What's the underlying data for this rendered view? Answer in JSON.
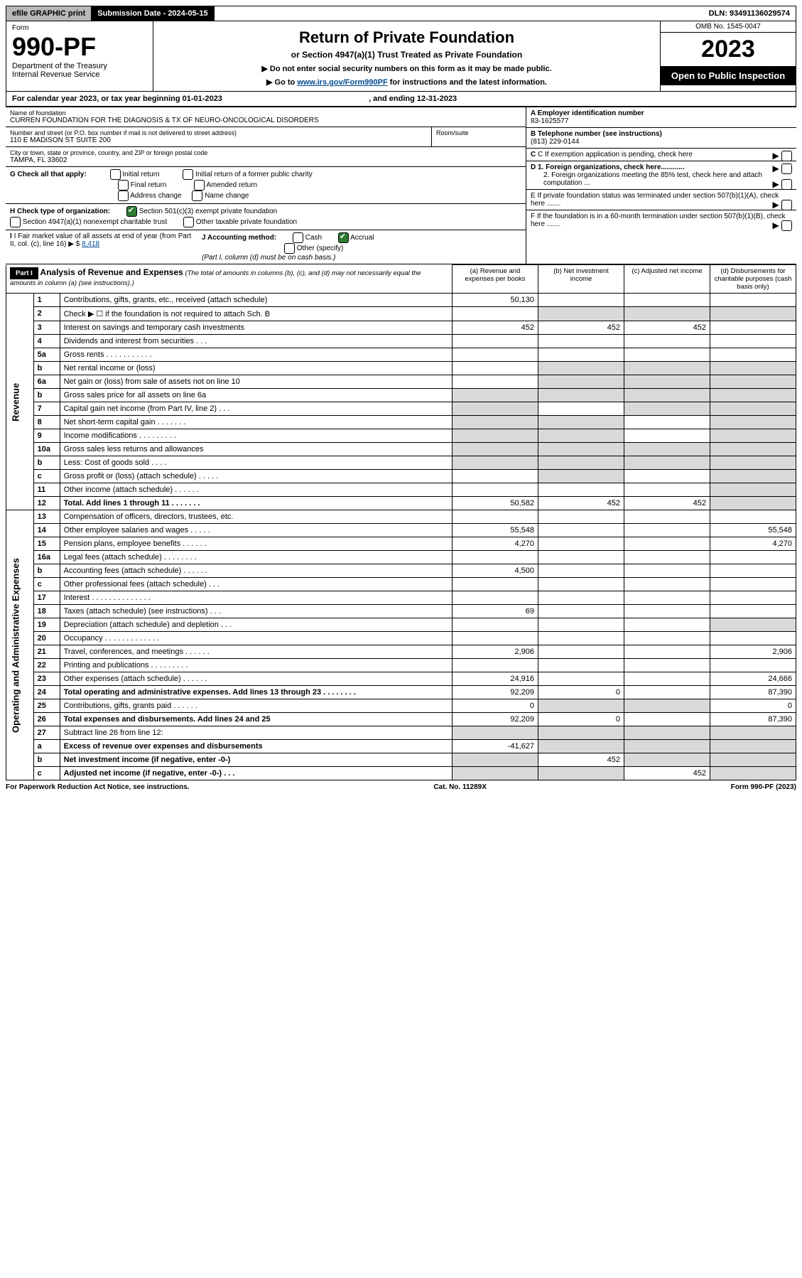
{
  "topbar": {
    "efile": "efile GRAPHIC print",
    "sublabel": "Submission Date - 2024-05-15",
    "dln": "DLN: 93491136029574"
  },
  "header": {
    "formWord": "Form",
    "formNo": "990-PF",
    "dept": "Department of the Treasury",
    "irs": "Internal Revenue Service",
    "title": "Return of Private Foundation",
    "subtitle": "or Section 4947(a)(1) Trust Treated as Private Foundation",
    "note1": "▶ Do not enter social security numbers on this form as it may be made public.",
    "note2_pre": "▶ Go to ",
    "note2_link": "www.irs.gov/Form990PF",
    "note2_post": " for instructions and the latest information.",
    "omb": "OMB No. 1545-0047",
    "year": "2023",
    "open": "Open to Public Inspection"
  },
  "calendar": {
    "pre": "For calendar year 2023, or tax year beginning ",
    "begin": "01-01-2023",
    "mid": ", and ending ",
    "end": "12-31-2023"
  },
  "foundation": {
    "nameLabel": "Name of foundation",
    "name": "CURREN FOUNDATION FOR THE DIAGNOSIS & TX OF NEURO-ONCOLOGICAL DISORDERS",
    "addrLabel": "Number and street (or P.O. box number if mail is not delivered to street address)",
    "addr": "110 E MADISON ST SUITE 200",
    "roomLabel": "Room/suite",
    "cityLabel": "City or town, state or province, country, and ZIP or foreign postal code",
    "city": "TAMPA, FL  33602",
    "einLabel": "A Employer identification number",
    "ein": "83-1625577",
    "phoneLabel": "B Telephone number (see instructions)",
    "phone": "(813) 229-0144",
    "cLabel": "C If exemption application is pending, check here",
    "d1": "D 1. Foreign organizations, check here............",
    "d2": "2. Foreign organizations meeting the 85% test, check here and attach computation ...",
    "e": "E  If private foundation status was terminated under section 507(b)(1)(A), check here .......",
    "f": "F  If the foundation is in a 60-month termination under section 507(b)(1)(B), check here .......",
    "gLabel": "G Check all that apply:",
    "g_items": [
      "Initial return",
      "Final return",
      "Address change",
      "Initial return of a former public charity",
      "Amended return",
      "Name change"
    ],
    "hLabel": "H Check type of organization:",
    "h1": "Section 501(c)(3) exempt private foundation",
    "h2": "Section 4947(a)(1) nonexempt charitable trust",
    "h3": "Other taxable private foundation",
    "iLabel": "I Fair market value of all assets at end of year (from Part II, col. (c), line 16)",
    "iVal": "8,418",
    "jLabel": "J Accounting method:",
    "j_cash": "Cash",
    "j_accrual": "Accrual",
    "j_other": "Other (specify)",
    "j_note": "(Part I, column (d) must be on cash basis.)"
  },
  "part1": {
    "label": "Part I",
    "title": "Analysis of Revenue and Expenses",
    "note": "(The total of amounts in columns (b), (c), and (d) may not necessarily equal the amounts in column (a) (see instructions).)",
    "cols": {
      "a": "(a) Revenue and expenses per books",
      "b": "(b) Net investment income",
      "c": "(c) Adjusted net income",
      "d": "(d) Disbursements for charitable purposes (cash basis only)"
    }
  },
  "sections": {
    "revenue": "Revenue",
    "expenses": "Operating and Administrative Expenses"
  },
  "rows": [
    {
      "n": "1",
      "d": "Contributions, gifts, grants, etc., received (attach schedule)",
      "a": "50,130",
      "b": "",
      "c": "",
      "dd": ""
    },
    {
      "n": "2",
      "d": "Check ▶ ☐ if the foundation is not required to attach Sch. B",
      "grey_bcd": true
    },
    {
      "n": "3",
      "d": "Interest on savings and temporary cash investments",
      "a": "452",
      "b": "452",
      "c": "452",
      "dd": ""
    },
    {
      "n": "4",
      "d": "Dividends and interest from securities   .  .  .",
      "a": "",
      "b": "",
      "c": "",
      "dd": ""
    },
    {
      "n": "5a",
      "d": "Gross rents   .  .  .  .  .  .  .  .  .  .  .",
      "a": "",
      "b": "",
      "c": "",
      "dd": ""
    },
    {
      "n": "b",
      "d": "Net rental income or (loss)",
      "grey_bcd": true
    },
    {
      "n": "6a",
      "d": "Net gain or (loss) from sale of assets not on line 10",
      "a": "",
      "grey_bcd": true
    },
    {
      "n": "b",
      "d": "Gross sales price for all assets on line 6a",
      "grey_all": true
    },
    {
      "n": "7",
      "d": "Capital gain net income (from Part IV, line 2)   .  .  .",
      "grey_a": true,
      "b": "",
      "grey_cd": true
    },
    {
      "n": "8",
      "d": "Net short-term capital gain  .  .  .  .  .  .  .",
      "grey_ab": true,
      "c": "",
      "grey_d": true
    },
    {
      "n": "9",
      "d": "Income modifications  .  .  .  .  .  .  .  .  .",
      "grey_ab": true,
      "c": "",
      "grey_d": true
    },
    {
      "n": "10a",
      "d": "Gross sales less returns and allowances",
      "grey_all": true
    },
    {
      "n": "b",
      "d": "Less: Cost of goods sold   .  .  .  .",
      "grey_all": true
    },
    {
      "n": "c",
      "d": "Gross profit or (loss) (attach schedule)   .  .  .  .  .",
      "a": "",
      "grey_b": true,
      "c": "",
      "grey_d": true
    },
    {
      "n": "11",
      "d": "Other income (attach schedule)   .  .  .  .  .  .",
      "a": "",
      "b": "",
      "c": "",
      "grey_d": true
    },
    {
      "n": "12",
      "d": "Total. Add lines 1 through 11   .  .  .  .  .  .  .",
      "bold": true,
      "a": "50,582",
      "b": "452",
      "c": "452",
      "grey_d": true
    },
    {
      "n": "13",
      "d": "Compensation of officers, directors, trustees, etc.",
      "a": "",
      "b": "",
      "c": "",
      "dd": ""
    },
    {
      "n": "14",
      "d": "Other employee salaries and wages   .  .  .  .  .",
      "a": "55,548",
      "b": "",
      "c": "",
      "dd": "55,548"
    },
    {
      "n": "15",
      "d": "Pension plans, employee benefits  .  .  .  .  .  .",
      "a": "4,270",
      "b": "",
      "c": "",
      "dd": "4,270"
    },
    {
      "n": "16a",
      "d": "Legal fees (attach schedule)  .  .  .  .  .  .  .  .",
      "a": "",
      "b": "",
      "c": "",
      "dd": ""
    },
    {
      "n": "b",
      "d": "Accounting fees (attach schedule)  .  .  .  .  .  .",
      "a": "4,500",
      "b": "",
      "c": "",
      "dd": ""
    },
    {
      "n": "c",
      "d": "Other professional fees (attach schedule)   .  .  .",
      "a": "",
      "b": "",
      "c": "",
      "dd": ""
    },
    {
      "n": "17",
      "d": "Interest  .  .  .  .  .  .  .  .  .  .  .  .  .  .",
      "a": "",
      "b": "",
      "c": "",
      "dd": ""
    },
    {
      "n": "18",
      "d": "Taxes (attach schedule) (see instructions)   .  .  .",
      "a": "69",
      "b": "",
      "c": "",
      "dd": ""
    },
    {
      "n": "19",
      "d": "Depreciation (attach schedule) and depletion   .  .  .",
      "a": "",
      "b": "",
      "c": "",
      "grey_d": true
    },
    {
      "n": "20",
      "d": "Occupancy  .  .  .  .  .  .  .  .  .  .  .  .  .",
      "a": "",
      "b": "",
      "c": "",
      "dd": ""
    },
    {
      "n": "21",
      "d": "Travel, conferences, and meetings  .  .  .  .  .  .",
      "a": "2,906",
      "b": "",
      "c": "",
      "dd": "2,906"
    },
    {
      "n": "22",
      "d": "Printing and publications  .  .  .  .  .  .  .  .  .",
      "a": "",
      "b": "",
      "c": "",
      "dd": ""
    },
    {
      "n": "23",
      "d": "Other expenses (attach schedule)  .  .  .  .  .  .",
      "a": "24,916",
      "b": "",
      "c": "",
      "dd": "24,666"
    },
    {
      "n": "24",
      "d": "Total operating and administrative expenses. Add lines 13 through 23   .  .  .  .  .  .  .  .",
      "bold": true,
      "a": "92,209",
      "b": "0",
      "c": "",
      "dd": "87,390"
    },
    {
      "n": "25",
      "d": "Contributions, gifts, grants paid   .  .  .  .  .  .",
      "a": "0",
      "grey_bc": true,
      "dd": "0"
    },
    {
      "n": "26",
      "d": "Total expenses and disbursements. Add lines 24 and 25",
      "bold": true,
      "a": "92,209",
      "b": "0",
      "c": "",
      "dd": "87,390"
    },
    {
      "n": "27",
      "d": "Subtract line 26 from line 12:",
      "grey_all": true
    },
    {
      "n": "a",
      "d": "Excess of revenue over expenses and disbursements",
      "bold": true,
      "a": "-41,627",
      "grey_bcd": true
    },
    {
      "n": "b",
      "d": "Net investment income (if negative, enter -0-)",
      "bold": true,
      "grey_a": true,
      "b": "452",
      "grey_cd": true
    },
    {
      "n": "c",
      "d": "Adjusted net income (if negative, enter -0-)   .  .  .",
      "bold": true,
      "grey_ab": true,
      "c": "452",
      "grey_d": true
    }
  ],
  "footer": {
    "left": "For Paperwork Reduction Act Notice, see instructions.",
    "mid": "Cat. No. 11289X",
    "right": "Form 990-PF (2023)"
  },
  "colors": {
    "link": "#004b8d",
    "grey": "#d9d9d9",
    "checked": "#2e7d32"
  }
}
